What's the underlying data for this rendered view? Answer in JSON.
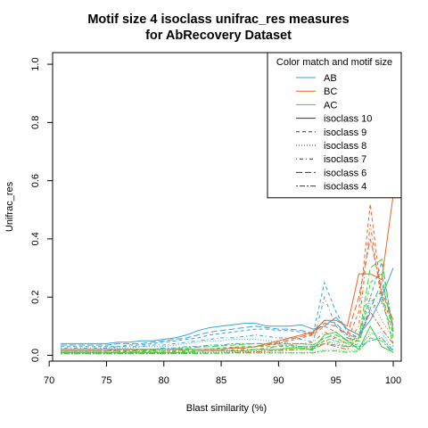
{
  "chart_data": {
    "type": "line",
    "title_line1": "Motif size 4 isoclass unifrac_res measures",
    "title_line2": "for AbRecovery Dataset",
    "xlabel": "Blast similarity (%)",
    "ylabel": "Unifrac_res",
    "xlim": [
      70.3,
      100.7
    ],
    "ylim": [
      -0.02,
      1.04
    ],
    "xticks": [
      70,
      75,
      80,
      85,
      90,
      95,
      100
    ],
    "yticks": [
      0.0,
      0.2,
      0.4,
      0.6,
      0.8,
      1.0
    ],
    "ytick_labels": [
      "0.0",
      "0.2",
      "0.4",
      "0.6",
      "0.8",
      "1.0"
    ],
    "grid": false,
    "legend": {
      "title": "Color match and motif size",
      "placement": "top-right",
      "color_entries": [
        {
          "label": "AB",
          "color": "#3ba3d0"
        },
        {
          "label": "BC",
          "color": "#e8642c"
        },
        {
          "label": "AC",
          "color": "#3bcf3b"
        }
      ],
      "style_entries": [
        {
          "label": "isoclass 10",
          "dash": "solid"
        },
        {
          "label": "isoclass 9",
          "dash": "dashed"
        },
        {
          "label": "isoclass 8",
          "dash": "dotted"
        },
        {
          "label": "isoclass 7",
          "dash": "dotdash"
        },
        {
          "label": "isoclass 6",
          "dash": "longdash"
        },
        {
          "label": "isoclass 4",
          "dash": "twodash"
        }
      ]
    },
    "x": [
      71,
      72,
      73,
      74,
      75,
      76,
      77,
      78,
      79,
      80,
      81,
      82,
      83,
      84,
      85,
      86,
      87,
      88,
      89,
      90,
      91,
      92,
      93,
      94,
      95,
      96,
      97,
      98,
      99,
      100
    ],
    "series": [
      {
        "color": "AB",
        "isoclass": "isoclass 10",
        "values": [
          0.04,
          0.04,
          0.04,
          0.04,
          0.04,
          0.045,
          0.045,
          0.05,
          0.05,
          0.055,
          0.06,
          0.07,
          0.085,
          0.095,
          0.1,
          0.105,
          0.11,
          0.11,
          0.1,
          0.1,
          0.1,
          0.105,
          0.09,
          0.1,
          0.13,
          0.09,
          0.07,
          0.12,
          0.2,
          0.3
        ]
      },
      {
        "color": "AB",
        "isoclass": "isoclass 9",
        "values": [
          0.03,
          0.03,
          0.03,
          0.03,
          0.03,
          0.03,
          0.035,
          0.035,
          0.04,
          0.045,
          0.05,
          0.055,
          0.06,
          0.07,
          0.075,
          0.08,
          0.085,
          0.09,
          0.09,
          0.085,
          0.085,
          0.08,
          0.07,
          0.25,
          0.15,
          0.08,
          0.06,
          0.2,
          0.32,
          0.08
        ]
      },
      {
        "color": "AB",
        "isoclass": "isoclass 8",
        "values": [
          0.02,
          0.02,
          0.02,
          0.02,
          0.025,
          0.025,
          0.025,
          0.03,
          0.03,
          0.03,
          0.035,
          0.04,
          0.045,
          0.05,
          0.05,
          0.055,
          0.055,
          0.055,
          0.05,
          0.045,
          0.04,
          0.04,
          0.035,
          0.06,
          0.05,
          0.04,
          0.03,
          0.07,
          0.08,
          0.02
        ]
      },
      {
        "color": "AB",
        "isoclass": "isoclass 7",
        "values": [
          0.025,
          0.025,
          0.025,
          0.025,
          0.025,
          0.03,
          0.03,
          0.03,
          0.035,
          0.035,
          0.04,
          0.045,
          0.05,
          0.055,
          0.06,
          0.06,
          0.065,
          0.07,
          0.065,
          0.06,
          0.06,
          0.055,
          0.045,
          0.2,
          0.1,
          0.06,
          0.05,
          0.15,
          0.2,
          0.04
        ]
      },
      {
        "color": "AB",
        "isoclass": "isoclass 6",
        "values": [
          0.035,
          0.035,
          0.035,
          0.035,
          0.035,
          0.04,
          0.04,
          0.04,
          0.045,
          0.05,
          0.055,
          0.06,
          0.07,
          0.08,
          0.085,
          0.09,
          0.095,
          0.1,
          0.095,
          0.09,
          0.09,
          0.085,
          0.075,
          0.12,
          0.11,
          0.07,
          0.06,
          0.16,
          0.25,
          0.1
        ]
      },
      {
        "color": "AB",
        "isoclass": "isoclass 4",
        "values": [
          0.015,
          0.015,
          0.015,
          0.015,
          0.015,
          0.02,
          0.02,
          0.02,
          0.02,
          0.025,
          0.025,
          0.03,
          0.03,
          0.035,
          0.035,
          0.04,
          0.04,
          0.04,
          0.04,
          0.035,
          0.035,
          0.03,
          0.03,
          0.04,
          0.035,
          0.03,
          0.03,
          0.05,
          0.06,
          0.015
        ]
      },
      {
        "color": "BC",
        "isoclass": "isoclass 10",
        "values": [
          0.02,
          0.02,
          0.02,
          0.02,
          0.02,
          0.02,
          0.02,
          0.02,
          0.02,
          0.02,
          0.02,
          0.02,
          0.02,
          0.02,
          0.02,
          0.025,
          0.025,
          0.03,
          0.04,
          0.05,
          0.06,
          0.07,
          0.08,
          0.12,
          0.12,
          0.1,
          0.28,
          0.28,
          0.26,
          0.55
        ]
      },
      {
        "color": "BC",
        "isoclass": "isoclass 9",
        "values": [
          0.02,
          0.02,
          0.02,
          0.02,
          0.02,
          0.02,
          0.02,
          0.02,
          0.02,
          0.02,
          0.02,
          0.02,
          0.02,
          0.02,
          0.02,
          0.025,
          0.025,
          0.03,
          0.035,
          0.04,
          0.05,
          0.06,
          0.07,
          0.1,
          0.08,
          0.05,
          0.15,
          0.52,
          0.2,
          0.1
        ]
      },
      {
        "color": "BC",
        "isoclass": "isoclass 8",
        "values": [
          0.01,
          0.01,
          0.01,
          0.01,
          0.01,
          0.01,
          0.01,
          0.01,
          0.01,
          0.01,
          0.01,
          0.01,
          0.01,
          0.01,
          0.01,
          0.012,
          0.012,
          0.015,
          0.018,
          0.02,
          0.025,
          0.03,
          0.03,
          0.05,
          0.04,
          0.03,
          0.08,
          0.2,
          0.12,
          0.06
        ]
      },
      {
        "color": "BC",
        "isoclass": "isoclass 7",
        "values": [
          0.015,
          0.015,
          0.015,
          0.015,
          0.015,
          0.015,
          0.015,
          0.015,
          0.015,
          0.015,
          0.015,
          0.015,
          0.015,
          0.015,
          0.015,
          0.018,
          0.018,
          0.02,
          0.025,
          0.03,
          0.035,
          0.04,
          0.045,
          0.08,
          0.06,
          0.04,
          0.1,
          0.45,
          0.18,
          0.08
        ]
      },
      {
        "color": "BC",
        "isoclass": "isoclass 6",
        "values": [
          0.02,
          0.02,
          0.02,
          0.02,
          0.02,
          0.02,
          0.02,
          0.02,
          0.02,
          0.02,
          0.02,
          0.02,
          0.02,
          0.02,
          0.02,
          0.025,
          0.025,
          0.03,
          0.035,
          0.045,
          0.055,
          0.065,
          0.075,
          0.11,
          0.1,
          0.07,
          0.2,
          0.4,
          0.22,
          0.12
        ]
      },
      {
        "color": "BC",
        "isoclass": "isoclass 4",
        "values": [
          0.008,
          0.008,
          0.008,
          0.008,
          0.008,
          0.008,
          0.008,
          0.008,
          0.008,
          0.008,
          0.008,
          0.008,
          0.008,
          0.008,
          0.008,
          0.01,
          0.01,
          0.012,
          0.014,
          0.016,
          0.018,
          0.02,
          0.022,
          0.04,
          0.03,
          0.02,
          0.06,
          0.15,
          0.09,
          0.04
        ]
      },
      {
        "color": "AC",
        "isoclass": "isoclass 10",
        "values": [
          0.01,
          0.01,
          0.01,
          0.01,
          0.01,
          0.01,
          0.01,
          0.01,
          0.01,
          0.01,
          0.01,
          0.01,
          0.015,
          0.015,
          0.015,
          0.015,
          0.015,
          0.02,
          0.02,
          0.02,
          0.025,
          0.025,
          0.02,
          0.07,
          0.08,
          0.05,
          0.02,
          0.1,
          0.03,
          0.01
        ]
      },
      {
        "color": "AC",
        "isoclass": "isoclass 9",
        "values": [
          0.01,
          0.01,
          0.01,
          0.01,
          0.01,
          0.012,
          0.012,
          0.012,
          0.014,
          0.014,
          0.016,
          0.018,
          0.02,
          0.022,
          0.025,
          0.028,
          0.03,
          0.03,
          0.03,
          0.03,
          0.03,
          0.03,
          0.025,
          0.05,
          0.06,
          0.04,
          0.05,
          0.25,
          0.28,
          0.06
        ]
      },
      {
        "color": "AC",
        "isoclass": "isoclass 8",
        "values": [
          0.005,
          0.005,
          0.005,
          0.005,
          0.005,
          0.005,
          0.005,
          0.005,
          0.006,
          0.006,
          0.006,
          0.007,
          0.008,
          0.008,
          0.009,
          0.01,
          0.01,
          0.01,
          0.01,
          0.01,
          0.01,
          0.01,
          0.01,
          0.02,
          0.02,
          0.015,
          0.02,
          0.08,
          0.06,
          0.01
        ]
      },
      {
        "color": "AC",
        "isoclass": "isoclass 7",
        "values": [
          0.008,
          0.008,
          0.008,
          0.008,
          0.008,
          0.008,
          0.01,
          0.01,
          0.01,
          0.01,
          0.012,
          0.012,
          0.014,
          0.015,
          0.016,
          0.018,
          0.02,
          0.02,
          0.02,
          0.02,
          0.02,
          0.02,
          0.018,
          0.04,
          0.05,
          0.03,
          0.04,
          0.18,
          0.22,
          0.03
        ]
      },
      {
        "color": "AC",
        "isoclass": "isoclass 6",
        "values": [
          0.015,
          0.015,
          0.015,
          0.015,
          0.015,
          0.016,
          0.016,
          0.017,
          0.018,
          0.02,
          0.022,
          0.025,
          0.028,
          0.03,
          0.032,
          0.035,
          0.038,
          0.04,
          0.04,
          0.04,
          0.04,
          0.04,
          0.035,
          0.06,
          0.07,
          0.05,
          0.06,
          0.3,
          0.33,
          0.08
        ]
      },
      {
        "color": "AC",
        "isoclass": "isoclass 4",
        "values": [
          0.005,
          0.005,
          0.005,
          0.005,
          0.005,
          0.005,
          0.005,
          0.005,
          0.005,
          0.005,
          0.006,
          0.006,
          0.006,
          0.007,
          0.007,
          0.008,
          0.008,
          0.008,
          0.008,
          0.008,
          0.008,
          0.008,
          0.008,
          0.015,
          0.015,
          0.01,
          0.015,
          0.06,
          0.05,
          0.008
        ]
      }
    ]
  }
}
